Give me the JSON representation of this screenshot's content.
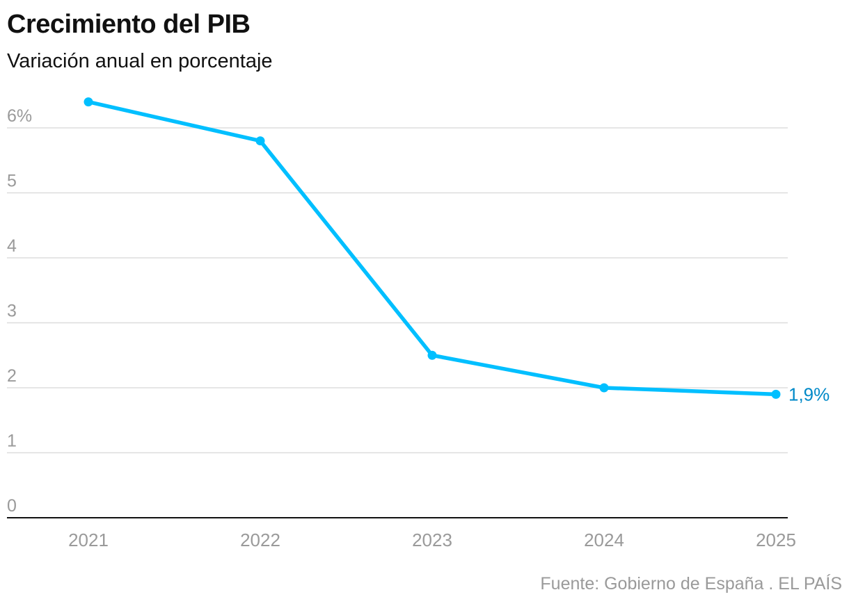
{
  "header": {
    "title": "Crecimiento del PIB",
    "subtitle": "Variación anual en porcentaje"
  },
  "footer": {
    "source": "Fuente: Gobierno de España . EL PAÍS"
  },
  "colors": {
    "line": "#00BFFF",
    "end_label": "#0089C8",
    "grid": "#dddddd",
    "axis": "#111111",
    "tick_text": "#9a9a9a"
  },
  "chart_data": {
    "type": "line",
    "title": "Crecimiento del PIB",
    "subtitle": "Variación anual en porcentaje",
    "xlabel": "",
    "ylabel": "",
    "categories": [
      "2021",
      "2022",
      "2023",
      "2024",
      "2025"
    ],
    "series": [
      {
        "values": [
          6.4,
          5.8,
          2.5,
          2.0,
          1.9
        ]
      }
    ],
    "y_ticks": [
      0,
      1,
      2,
      3,
      4,
      5,
      6
    ],
    "y_tick_labels": [
      "0",
      "1",
      "2",
      "3",
      "4",
      "5",
      "6%"
    ],
    "ylim": [
      0,
      6.4
    ],
    "grid": true,
    "end_label": "1,9%"
  }
}
